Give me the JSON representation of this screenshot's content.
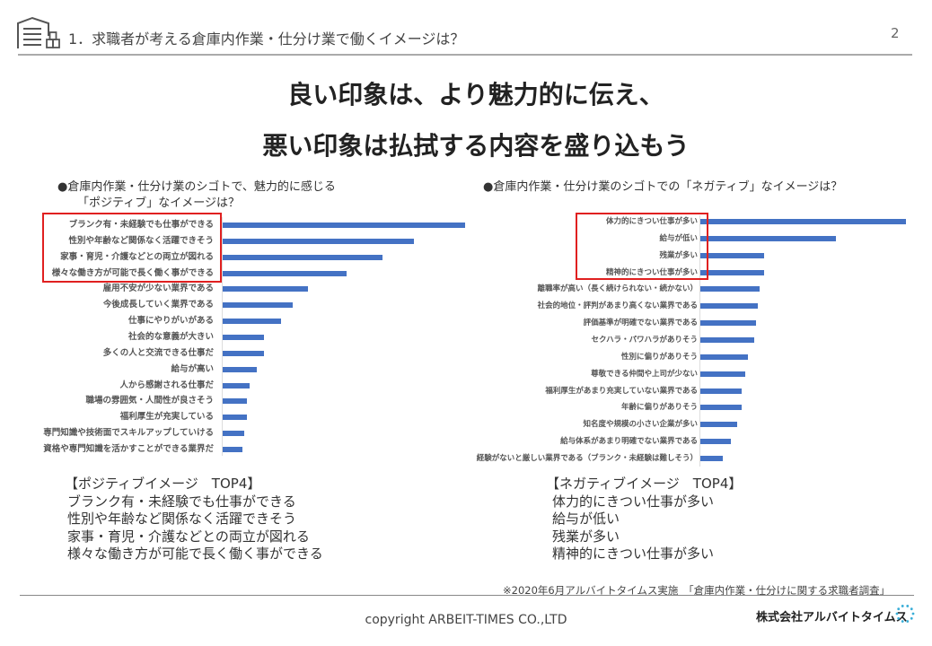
{
  "header": {
    "title": "1．求職者が考える倉庫内作業・仕分け業で働くイメージは？",
    "page_number": "2",
    "icon": "warehouse-icon"
  },
  "headline": {
    "line1": "良い印象は、より魅力的に伝え、",
    "line2": "悪い印象は払拭する内容を盛り込もう"
  },
  "chart_data": [
    {
      "type": "bar",
      "orientation": "horizontal",
      "title_line1": "●倉庫内作業・仕分け業のシゴトで、魅力的に感じる",
      "title_line2": "「ポジティブ」なイメージは？",
      "bar_color": "#4472c4",
      "highlight_color": "#e02020",
      "highlighted_top": 4,
      "categories": [
        "ブランク有・未経験でも仕事ができる",
        "性別や年齢など関係なく活躍できそう",
        "家事・育児・介護などとの両立が図れる",
        "様々な働き方が可能で長く働く事ができる",
        "雇用不安が少ない業界である",
        "今後成長していく業界である",
        "仕事にやりがいがある",
        "社会的な意義が大きい",
        "多くの人と交流できる仕事だ",
        "給与が高い",
        "人から感謝される仕事だ",
        "職場の雰囲気・人間性が良さそう",
        "福利厚生が充実している",
        "専門知識や技術面でスキルアップしていける",
        "資格や専門知識を活かすことができる業界だ"
      ],
      "values": [
        100,
        79,
        66,
        51,
        35,
        29,
        24,
        17,
        17,
        14,
        11,
        10,
        10,
        9,
        8
      ]
    },
    {
      "type": "bar",
      "orientation": "horizontal",
      "title_line1": "●倉庫内作業・仕分け業のシゴトでの「ネガティブ」なイメージは？",
      "bar_color": "#4472c4",
      "highlight_color": "#e02020",
      "highlighted_top": 4,
      "categories": [
        "体力的にきつい仕事が多い",
        "給与が低い",
        "残業が多い",
        "精神的にきつい仕事が多い",
        "離職率が高い（長く続けられない・続かない）",
        "社会的地位・評判があまり高くない業界である",
        "評価基準が明確でない業界である",
        "セクハラ・パワハラがありそう",
        "性別に偏りがありそう",
        "尊敬できる仲間や上司が少ない",
        "福利厚生があまり充実していない業界である",
        "年齢に偏りがありそう",
        "知名度や規模の小さい企業が多い",
        "給与体系があまり明確でない業界である",
        "経験がないと厳しい業界である（ブランク・未経験は難しそう）"
      ],
      "values": [
        100,
        66,
        31,
        31,
        29,
        28,
        27,
        26,
        23,
        22,
        20,
        20,
        18,
        15,
        11
      ]
    }
  ],
  "positive_top4": {
    "title": "【ポジティブイメージ　TOP4】",
    "items": [
      "ブランク有・未経験でも仕事ができる",
      "性別や年齢など関係なく活躍できそう",
      "家事・育児・介護などとの両立が図れる",
      "様々な働き方が可能で長く働く事ができる"
    ]
  },
  "negative_top4": {
    "title": "【ネガティブイメージ　TOP4】",
    "items": [
      "体力的にきつい仕事が多い",
      "給与が低い",
      "残業が多い",
      "精神的にきつい仕事が多い"
    ]
  },
  "footer": {
    "note": "※2020年6月アルバイトタイムス実施　「倉庫内作業・仕分けに関する求職者調査」",
    "copyright": "copyright ARBEIT-TIMES CO.,LTD",
    "brand": "株式会社アルバイトタイムス",
    "brand_icon": "dotted-circle-logo-icon",
    "brand_color": "#3aaed8"
  }
}
